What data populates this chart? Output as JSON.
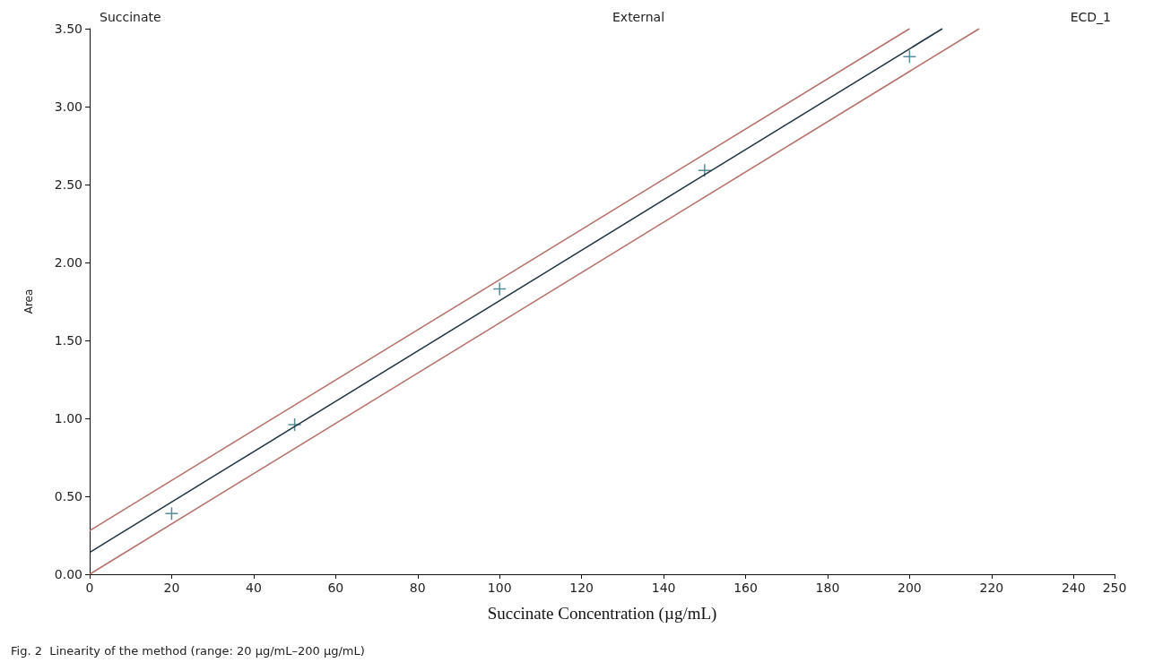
{
  "chart_data": {
    "type": "scatter",
    "xlabel": "Succinate Concentration (µg/mL)",
    "ylabel": "Area",
    "annotations": [
      "Succinate",
      "External",
      "ECD_1",
      "Fig. 2  Linearity of the method (range: 20 µg/mL–200 µg/mL)"
    ],
    "xlim": [
      0,
      250
    ],
    "xticks": [
      0,
      20,
      40,
      60,
      80,
      100,
      120,
      140,
      160,
      180,
      200,
      220,
      240,
      250
    ],
    "ylim": [
      0,
      3.5
    ],
    "yticks": [
      {
        "value": 0,
        "label": "0.00"
      },
      {
        "value": 0.5,
        "label": "0.50"
      },
      {
        "value": 1,
        "label": "1.00"
      },
      {
        "value": 1.5,
        "label": "1.50"
      },
      {
        "value": 2,
        "label": "2.00"
      },
      {
        "value": 2.5,
        "label": "2.50"
      },
      {
        "value": 3,
        "label": "3.00"
      },
      {
        "value": 3.5,
        "label": "3.50"
      }
    ],
    "grid": false,
    "series": [
      {
        "marker": "cross",
        "color": "#2a6f80",
        "x": [
          20,
          50,
          100,
          150,
          200
        ],
        "values": [
          0.39,
          0.96,
          1.83,
          2.59,
          3.32
        ]
      },
      {
        "type": "line",
        "marker": "none",
        "color": "#1e3440",
        "x": [
          0,
          208
        ],
        "values": [
          0.14,
          3.5
        ]
      },
      {
        "type": "line",
        "marker": "none",
        "color": "#b5706a",
        "x": [
          0,
          200
        ],
        "values": [
          0.28,
          3.5
        ]
      },
      {
        "type": "line",
        "marker": "none",
        "color": "#b5706a",
        "x": [
          0,
          217
        ],
        "values": [
          0,
          3.5
        ]
      }
    ]
  }
}
